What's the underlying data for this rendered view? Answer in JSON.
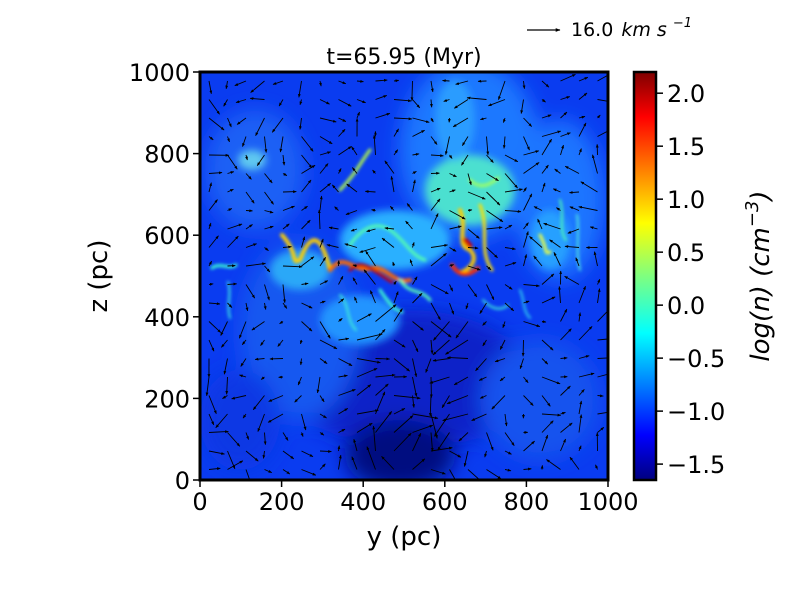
{
  "chart_data": {
    "type": "heatmap",
    "title": "t=65.95 (Myr)",
    "xlabel": "y (pc)",
    "ylabel": "z (pc)",
    "xlim": [
      0,
      1000
    ],
    "ylim": [
      0,
      1000
    ],
    "xticks": [
      "0",
      "200",
      "400",
      "600",
      "800",
      "1000"
    ],
    "yticks": [
      "0",
      "200",
      "400",
      "600",
      "800",
      "1000"
    ],
    "colormap": "jet",
    "colorbar": {
      "label_main": "log(n) (cm",
      "label_exp": "−3",
      "label_close": ")",
      "range": [
        -1.65,
        2.2
      ],
      "ticks": [
        "−1.5",
        "−1.0",
        "−0.5",
        "0.0",
        "0.5",
        "1.0",
        "1.5",
        "2.0"
      ],
      "tick_values": [
        -1.5,
        -1.0,
        -0.5,
        0.0,
        0.5,
        1.0,
        1.5,
        2.0
      ]
    },
    "quiver_key": {
      "value": "16.0",
      "unit_main": "km s",
      "unit_exp": "−1"
    },
    "grid": false
  }
}
